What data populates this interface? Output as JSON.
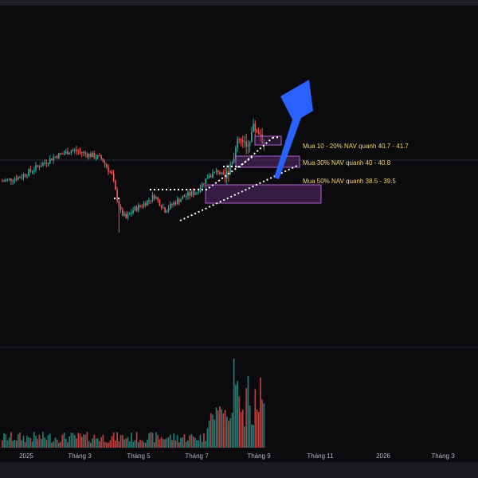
{
  "chart_data": {
    "type": "candlestick",
    "x_axis_labels": [
      "2025",
      "Tháng 3",
      "Tháng 5",
      "Tháng 7",
      "Tháng 9",
      "Tháng 11",
      "2026",
      "Tháng 3"
    ],
    "annotations": [
      {
        "text": "Mua 10 - 20% NAV quanh 40.7 - 41.7",
        "zone": [
          40.7,
          41.7
        ]
      },
      {
        "text": "Mua 30% NAV quanh 40 - 40.8",
        "zone": [
          40.0,
          40.8
        ]
      },
      {
        "text": "Mua 50% NAV quanh 38.5 - 39.5",
        "zone": [
          38.5,
          39.5
        ]
      }
    ],
    "price_anchors": [
      {
        "t": 0,
        "p": 39.1
      },
      {
        "t": 10,
        "p": 39.3
      },
      {
        "t": 20,
        "p": 39.8
      },
      {
        "t": 30,
        "p": 40.3
      },
      {
        "t": 40,
        "p": 40.6
      },
      {
        "t": 48,
        "p": 40.4
      },
      {
        "t": 56,
        "p": 40.2
      },
      {
        "t": 62,
        "p": 39.4
      },
      {
        "t": 64,
        "p": 38.6
      },
      {
        "t": 67,
        "p": 37.6
      },
      {
        "t": 70,
        "p": 37.3
      },
      {
        "t": 74,
        "p": 37.7
      },
      {
        "t": 80,
        "p": 38.0
      },
      {
        "t": 86,
        "p": 38.4
      },
      {
        "t": 92,
        "p": 37.7
      },
      {
        "t": 98,
        "p": 38.1
      },
      {
        "t": 104,
        "p": 38.4
      },
      {
        "t": 110,
        "p": 38.6
      },
      {
        "t": 116,
        "p": 39.3
      },
      {
        "t": 122,
        "p": 39.6
      },
      {
        "t": 126,
        "p": 39.2
      },
      {
        "t": 130,
        "p": 40.2
      },
      {
        "t": 134,
        "p": 41.1
      },
      {
        "t": 138,
        "p": 40.7
      },
      {
        "t": 142,
        "p": 41.7
      },
      {
        "t": 146,
        "p": 41.4
      },
      {
        "t": 148,
        "p": 40.9
      }
    ],
    "colors": {
      "up": "#26a69a",
      "down": "#ef5350",
      "zone_fill": "#5b2a6e",
      "zone_stroke": "#b15fcf",
      "arrow": "#2962ff",
      "annotation_text": "#f5d66b",
      "axis_text": "#b2b5be",
      "dots": "#ffffff"
    }
  }
}
